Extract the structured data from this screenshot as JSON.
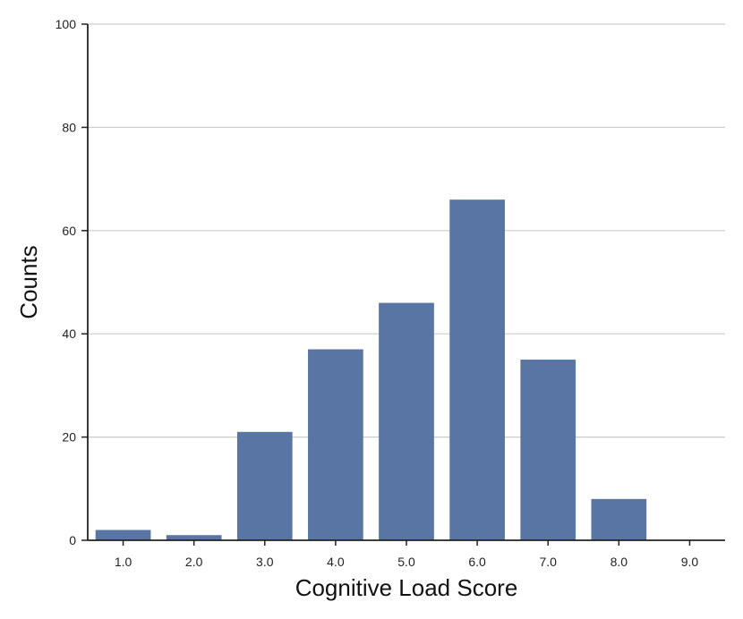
{
  "chart_data": {
    "type": "bar",
    "title": "",
    "xlabel": "Cognitive Load Score",
    "ylabel": "Counts",
    "categories": [
      "1.0",
      "2.0",
      "3.0",
      "4.0",
      "5.0",
      "6.0",
      "7.0",
      "8.0",
      "9.0"
    ],
    "values": [
      2,
      1,
      21,
      37,
      46,
      66,
      35,
      8,
      0
    ],
    "ylim": [
      0,
      100
    ],
    "yticks": [
      0,
      20,
      40,
      60,
      80,
      100
    ],
    "grid": "horizontal",
    "legend": "none",
    "colors": {
      "bar": "#5975a4",
      "grid": "#cccccc",
      "axis": "#222222"
    }
  }
}
